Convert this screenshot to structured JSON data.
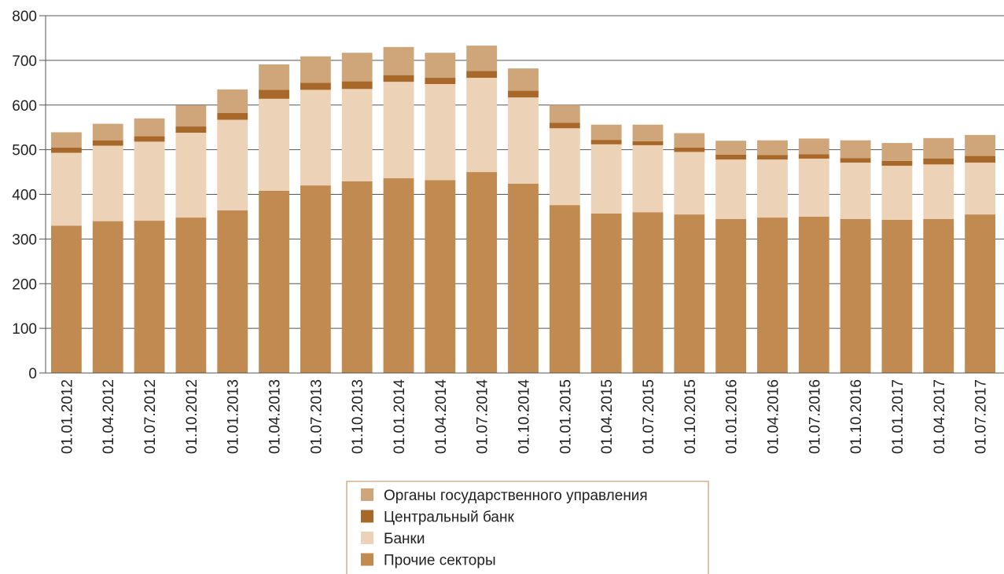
{
  "chart_data": {
    "type": "bar",
    "stacked": true,
    "categories": [
      "01.01.2012",
      "01.04.2012",
      "01.07.2012",
      "01.10.2012",
      "01.01.2013",
      "01.04.2013",
      "01.07.2013",
      "01.10.2013",
      "01.01.2014",
      "01.04.2014",
      "01.07.2014",
      "01.10.2014",
      "01.01.2015",
      "01.04.2015",
      "01.07.2015",
      "01.10.2015",
      "01.01.2016",
      "01.04.2016",
      "01.07.2016",
      "01.10.2016",
      "01.01.2017",
      "01.04.2017",
      "01.07.2017"
    ],
    "series": [
      {
        "name": "Прочие секторы",
        "color": "#c18a50",
        "values": [
          330,
          340,
          341,
          348,
          364,
          408,
          420,
          429,
          436,
          432,
          450,
          424,
          376,
          357,
          360,
          355,
          345,
          348,
          350,
          345,
          343,
          345,
          355
        ]
      },
      {
        "name": "Банки",
        "color": "#ecd2b6",
        "values": [
          163,
          169,
          177,
          190,
          203,
          206,
          214,
          207,
          216,
          215,
          211,
          193,
          172,
          155,
          150,
          140,
          133,
          130,
          130,
          126,
          121,
          122,
          116
        ]
      },
      {
        "name": "Центральный банк",
        "color": "#a8682a",
        "values": [
          12,
          12,
          12,
          14,
          15,
          20,
          16,
          17,
          15,
          14,
          15,
          15,
          12,
          10,
          9,
          10,
          11,
          10,
          10,
          10,
          11,
          13,
          15
        ]
      },
      {
        "name": "Органы государственного управления",
        "color": "#cfa679",
        "values": [
          34,
          37,
          40,
          47,
          53,
          57,
          59,
          64,
          63,
          56,
          57,
          50,
          40,
          34,
          37,
          32,
          31,
          33,
          35,
          40,
          40,
          46,
          47
        ]
      }
    ],
    "legend_order": [
      "Органы государственного управления",
      "Центральный банк",
      "Банки",
      "Прочие секторы"
    ],
    "y_ticks": [
      "0",
      "100",
      "200",
      "300",
      "400",
      "500",
      "600",
      "700",
      "800"
    ],
    "ylim": [
      0,
      800
    ],
    "grid": true,
    "legend_position": "bottom-center"
  }
}
